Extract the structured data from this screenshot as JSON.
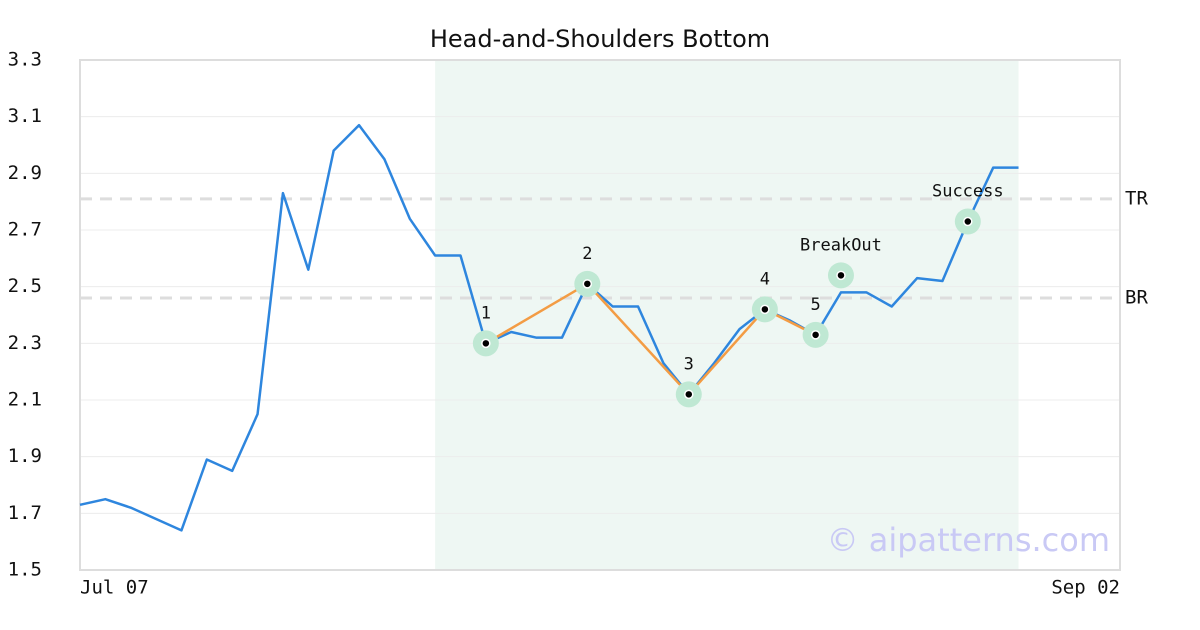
{
  "chart_data": {
    "type": "line",
    "title": "Head-and-Shoulders Bottom",
    "categories": [
      "Jul 07",
      null,
      null,
      null,
      null,
      null,
      null,
      null,
      null,
      null,
      null,
      null,
      null,
      null,
      null,
      null,
      null,
      null,
      null,
      null,
      null,
      null,
      null,
      null,
      null,
      null,
      null,
      null,
      null,
      null,
      null,
      null,
      null,
      null,
      null,
      null,
      null,
      null,
      null,
      null,
      null,
      "Sep 02"
    ],
    "series": [
      {
        "color": "#2e86de",
        "values": [
          1.73,
          1.75,
          1.72,
          1.68,
          1.64,
          1.89,
          1.85,
          2.05,
          2.83,
          2.56,
          2.98,
          3.07,
          2.95,
          2.74,
          2.61,
          2.61,
          2.3,
          2.34,
          2.32,
          2.32,
          2.51,
          2.43,
          2.43,
          2.23,
          2.12,
          2.23,
          2.35,
          2.42,
          2.38,
          2.33,
          2.48,
          2.48,
          2.43,
          2.53,
          2.52,
          2.73,
          2.92,
          2.92,
          null,
          null,
          null,
          null
        ]
      }
    ],
    "ylim": [
      1.5,
      3.3
    ],
    "yticks": [
      1.5,
      1.7,
      1.9,
      2.1,
      2.3,
      2.5,
      2.7,
      2.9,
      3.1,
      3.3
    ],
    "grid": true,
    "highlight": {
      "from": 14,
      "to": 37,
      "color": "#eef7f3"
    },
    "levels": [
      {
        "label": "TR",
        "value": 2.81
      },
      {
        "label": "BR",
        "value": 2.46
      }
    ],
    "pattern": {
      "color": "#f39c44",
      "points": [
        {
          "label": "1",
          "x": 16,
          "value": 2.3
        },
        {
          "label": "2",
          "x": 20,
          "value": 2.51
        },
        {
          "label": "3",
          "x": 24,
          "value": 2.12
        },
        {
          "label": "4",
          "x": 27,
          "value": 2.42
        },
        {
          "label": "5",
          "x": 29,
          "value": 2.33
        }
      ]
    },
    "annotations": [
      {
        "label": "BreakOut",
        "x": 30,
        "value": 2.54
      },
      {
        "label": "Success",
        "x": 35,
        "value": 2.73
      }
    ],
    "watermark": "© aipatterns.com"
  }
}
